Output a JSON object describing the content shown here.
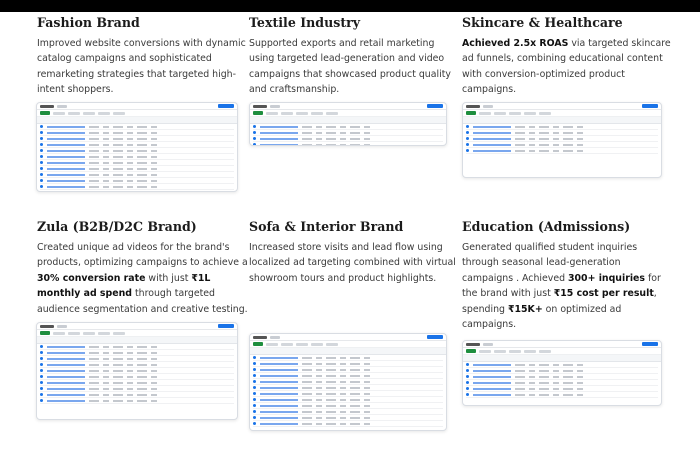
{
  "cards": [
    {
      "title": "Fashion Brand",
      "desc": [
        {
          "t": "Improved website conversions with dynamic catalog campaigns and sophisticated remarketing strategies that targeted high-intent shoppers.",
          "b": false
        }
      ]
    },
    {
      "title": "Textile Industry",
      "desc": [
        {
          "t": "Supported exports and retail marketing using targeted lead-generation and video campaigns that showcased product quality and craftsmanship.",
          "b": false
        }
      ]
    },
    {
      "title": "Skincare & Healthcare",
      "desc": [
        {
          "t": "Achieved 2.5x ROAS",
          "b": true
        },
        {
          "t": " via targeted skincare ad funnels, combining educational content with conversion-optimized product campaigns.",
          "b": false
        }
      ]
    },
    {
      "title": "Zula (B2B/D2C Brand)",
      "desc": [
        {
          "t": "Created unique ad videos for the brand's products, optimizing campaigns to achieve a ",
          "b": false
        },
        {
          "t": "30% conversion rate",
          "b": true
        },
        {
          "t": " with just ",
          "b": false
        },
        {
          "t": "₹1L monthly ad spend",
          "b": true
        },
        {
          "t": " through targeted audience segmentation and creative testing.",
          "b": false
        }
      ]
    },
    {
      "title": "Sofa & Interior Brand",
      "desc": [
        {
          "t": "Increased store visits and lead flow using localized ad targeting combined with virtual showroom tours and product highlights.",
          "b": false
        }
      ]
    },
    {
      "title": "Education (Admissions)",
      "desc": [
        {
          "t": "Generated qualified student inquiries through seasonal lead-generation campaigns . Achieved ",
          "b": false
        },
        {
          "t": "300+ inquiries",
          "b": true
        },
        {
          "t": " for the brand with just ",
          "b": false
        },
        {
          "t": "₹15 cost per result",
          "b": true
        },
        {
          "t": ", spending ",
          "b": false
        },
        {
          "t": "₹15K+",
          "b": true
        },
        {
          "t": " on optimized ad campaigns.",
          "b": false
        }
      ]
    }
  ],
  "screenshots": [
    {
      "rows": 12
    },
    {
      "rows": 5
    },
    {
      "rows": 5
    },
    {
      "rows": 10
    },
    {
      "rows": 12
    },
    {
      "rows": 6
    }
  ]
}
